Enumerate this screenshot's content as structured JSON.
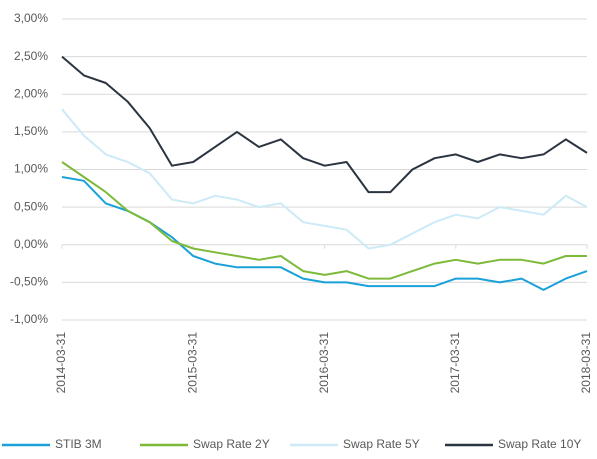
{
  "chart_data": {
    "type": "line",
    "x": [
      "2014-03-31",
      "2014-05-31",
      "2014-07-31",
      "2014-09-30",
      "2014-11-30",
      "2015-01-31",
      "2015-03-31",
      "2015-05-31",
      "2015-07-31",
      "2015-09-30",
      "2015-11-30",
      "2016-01-31",
      "2016-03-31",
      "2016-05-31",
      "2016-07-31",
      "2016-09-30",
      "2016-11-30",
      "2017-01-31",
      "2017-03-31",
      "2017-05-31",
      "2017-07-31",
      "2017-09-30",
      "2017-11-30",
      "2018-01-31",
      "2018-03-31"
    ],
    "xlim": [
      "2014-03-31",
      "2018-03-31"
    ],
    "xticks": [
      "2014-03-31",
      "2015-03-31",
      "2016-03-31",
      "2017-03-31",
      "2018-03-31"
    ],
    "ylim": [
      -1,
      3
    ],
    "yticks": [
      {
        "value": -1,
        "label": "-1,00%"
      },
      {
        "value": -0.5,
        "label": "-0,50%"
      },
      {
        "value": 0,
        "label": "0,00%"
      },
      {
        "value": 0.5,
        "label": "0,50%"
      },
      {
        "value": 1,
        "label": "1,00%"
      },
      {
        "value": 1.5,
        "label": "1,50%"
      },
      {
        "value": 2,
        "label": "2,00%"
      },
      {
        "value": 2.5,
        "label": "2,50%"
      },
      {
        "value": 3,
        "label": "3,00%"
      }
    ],
    "grid": true,
    "legend": "bottom",
    "series": [
      {
        "name": "STIB 3M",
        "color": "#1ba1d9",
        "values": [
          0.9,
          0.85,
          0.55,
          0.45,
          0.3,
          0.1,
          -0.15,
          -0.25,
          -0.3,
          -0.3,
          -0.3,
          -0.45,
          -0.5,
          -0.5,
          -0.55,
          -0.55,
          -0.55,
          -0.55,
          -0.45,
          -0.45,
          -0.5,
          -0.45,
          -0.6,
          -0.45,
          -0.35
        ]
      },
      {
        "name": "Swap Rate 2Y",
        "color": "#7dba3a",
        "values": [
          1.1,
          0.9,
          0.7,
          0.45,
          0.3,
          0.05,
          -0.05,
          -0.1,
          -0.15,
          -0.2,
          -0.15,
          -0.35,
          -0.4,
          -0.35,
          -0.45,
          -0.45,
          -0.35,
          -0.25,
          -0.2,
          -0.25,
          -0.2,
          -0.2,
          -0.25,
          -0.15,
          -0.15
        ]
      },
      {
        "name": "Swap Rate 5Y",
        "color": "#cdeaf7",
        "values": [
          1.8,
          1.45,
          1.2,
          1.1,
          0.95,
          0.6,
          0.55,
          0.65,
          0.6,
          0.5,
          0.55,
          0.3,
          0.25,
          0.2,
          -0.05,
          0.0,
          0.15,
          0.3,
          0.4,
          0.35,
          0.5,
          0.45,
          0.4,
          0.65,
          0.5
        ]
      },
      {
        "name": "Swap Rate 10Y",
        "color": "#2b3541",
        "values": [
          2.5,
          2.25,
          2.15,
          1.9,
          1.55,
          1.05,
          1.1,
          1.3,
          1.5,
          1.3,
          1.4,
          1.15,
          1.05,
          1.1,
          0.7,
          0.7,
          1.0,
          1.15,
          1.2,
          1.1,
          1.2,
          1.15,
          1.2,
          1.4,
          1.22
        ]
      }
    ]
  }
}
